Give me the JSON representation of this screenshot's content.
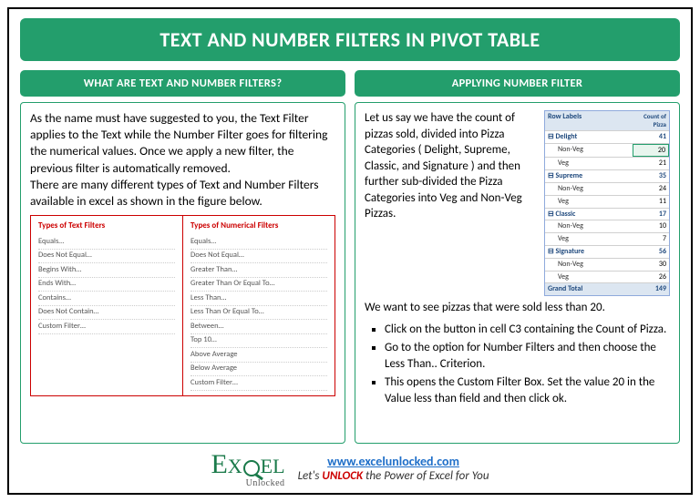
{
  "title": "TEXT AND NUMBER FILTERS IN PIVOT TABLE",
  "left": {
    "heading": "WHAT ARE TEXT AND NUMBER FILTERS?",
    "body": "As the name must have suggested to you, the Text Filter applies to the Text while the Number Filter goes for filtering the numerical values. Once we apply a new filter, the previous filter is automatically removed.\nThere are many different types of Text and Number Filters available in excel as shown in the figure below.",
    "textFiltersTitle": "Types of Text Filters",
    "textFilters": [
      "Equals…",
      "Does Not Equal…",
      "Begins With…",
      "Ends With…",
      "Contains…",
      "Does Not Contain…",
      "Custom Filter…"
    ],
    "numFiltersTitle": "Types of Numerical Filters",
    "numFilters": [
      "Equals…",
      "Does Not Equal…",
      "Greater Than…",
      "Greater Than Or Equal To…",
      "Less Than…",
      "Less Than Or Equal To…",
      "Between…",
      "Top 10…",
      "Above Average",
      "Below Average",
      "Custom Filter…"
    ]
  },
  "right": {
    "heading": "APPLYING NUMBER FILTER",
    "intro": "Let us say we have the count of pizzas sold, divided into Pizza Categories ( Delight, Supreme, Classic, and Signature ) and then further sub-divided the Pizza Categories into Veg and Non-Veg Pizzas.",
    "wantLine": "We want to see pizzas that were sold less than 20.",
    "steps": [
      "Click on the button in cell C3 containing the Count of Pizza.",
      "Go to the option for Number Filters and then choose the Less Than.. Criterion.",
      "This opens the Custom Filter Box. Set the value 20 in the Value less than field and then click ok."
    ],
    "pivot": {
      "hcol1": "Row Labels",
      "hcol2": "Count of Pizza",
      "groups": [
        {
          "name": "Delight",
          "total": 41,
          "rows": [
            [
              "Non-Veg",
              20,
              true
            ],
            [
              "Veg",
              21,
              false
            ]
          ]
        },
        {
          "name": "Supreme",
          "total": 35,
          "rows": [
            [
              "Non-Veg",
              24,
              false
            ],
            [
              "Veg",
              11,
              false
            ]
          ]
        },
        {
          "name": "Classic",
          "total": 17,
          "rows": [
            [
              "Non-Veg",
              10,
              false
            ],
            [
              "Veg",
              7,
              false
            ]
          ]
        },
        {
          "name": "Signature",
          "total": 56,
          "rows": [
            [
              "Non-Veg",
              30,
              false
            ],
            [
              "Veg",
              26,
              false
            ]
          ]
        }
      ],
      "grandLabel": "Grand Total",
      "grandValue": 149
    }
  },
  "footer": {
    "logo1": "E",
    "logo2": "X",
    "logo4": "EL",
    "logoSub": "Unlocked",
    "url": "www.excelunlocked.com",
    "tagPre": "Let's ",
    "tagB": "UNLOCK",
    "tagPost": " the Power of Excel for You"
  }
}
